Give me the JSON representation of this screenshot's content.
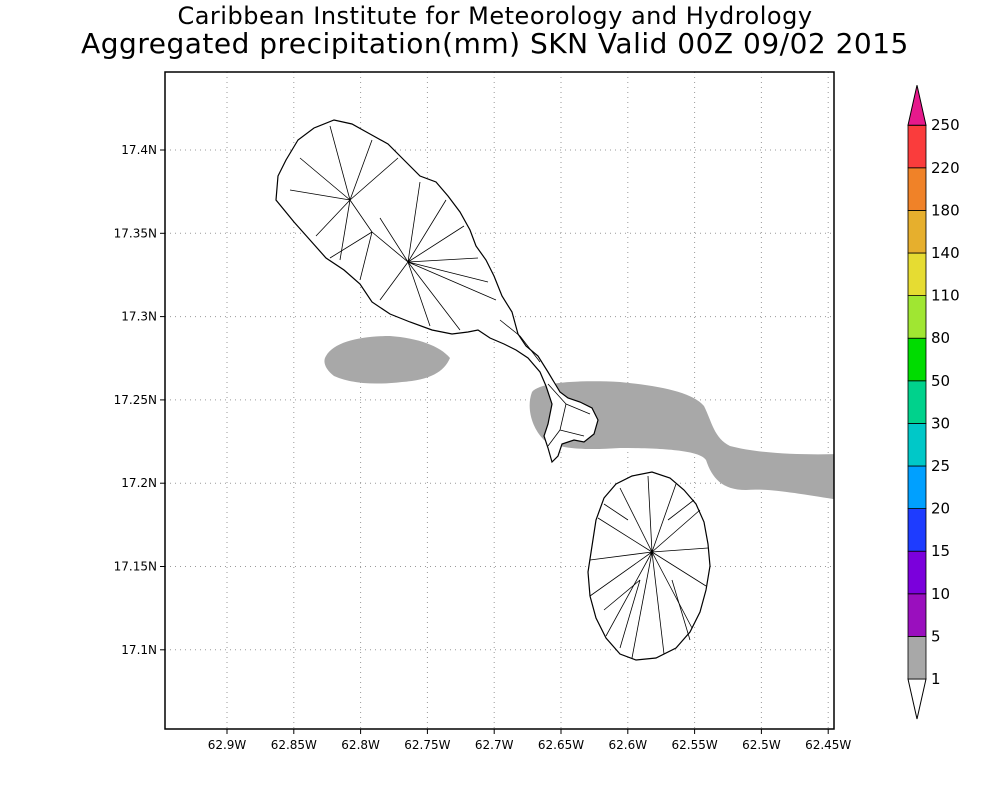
{
  "header": {
    "title_line1": "Caribbean Institute for Meteorology and Hydrology",
    "title_line2": "Aggregated precipitation(mm) SKN Valid 00Z 09/02 2015"
  },
  "map": {
    "lon_ticks": [
      {
        "value": -62.9,
        "label": "62.9W"
      },
      {
        "value": -62.85,
        "label": "62.85W"
      },
      {
        "value": -62.8,
        "label": "62.8W"
      },
      {
        "value": -62.75,
        "label": "62.75W"
      },
      {
        "value": -62.7,
        "label": "62.7W"
      },
      {
        "value": -62.65,
        "label": "62.65W"
      },
      {
        "value": -62.6,
        "label": "62.6W"
      },
      {
        "value": -62.55,
        "label": "62.55W"
      },
      {
        "value": -62.5,
        "label": "62.5W"
      },
      {
        "value": -62.45,
        "label": "62.45W"
      }
    ],
    "lat_ticks": [
      {
        "value": 17.4,
        "label": "17.4N"
      },
      {
        "value": 17.35,
        "label": "17.35N"
      },
      {
        "value": 17.3,
        "label": "17.3N"
      },
      {
        "value": 17.25,
        "label": "17.25N"
      },
      {
        "value": 17.2,
        "label": "17.2N"
      },
      {
        "value": 17.15,
        "label": "17.15N"
      },
      {
        "value": 17.1,
        "label": "17.1N"
      }
    ],
    "precip_fill_color": "#a8a8a8",
    "land_outline_color": "#000000",
    "grid_style": "dotted gray"
  },
  "colorbar": {
    "levels": [
      {
        "label": "1",
        "color": "#a8a8a8"
      },
      {
        "label": "5",
        "color": "#9a0fbe"
      },
      {
        "label": "10",
        "color": "#7b00dc"
      },
      {
        "label": "15",
        "color": "#1e3cff"
      },
      {
        "label": "20",
        "color": "#00a0ff"
      },
      {
        "label": "25",
        "color": "#00c8c8"
      },
      {
        "label": "30",
        "color": "#00d28c"
      },
      {
        "label": "50",
        "color": "#00dc00"
      },
      {
        "label": "80",
        "color": "#a0e632"
      },
      {
        "label": "110",
        "color": "#e6dc32"
      },
      {
        "label": "140",
        "color": "#e6af2d"
      },
      {
        "label": "180",
        "color": "#f08228"
      },
      {
        "label": "220",
        "color": "#fa3c3c"
      },
      {
        "label": "250",
        "color": "#f00082"
      }
    ],
    "low_end_color": "#ffffff",
    "high_end_color": "#e6198c"
  }
}
